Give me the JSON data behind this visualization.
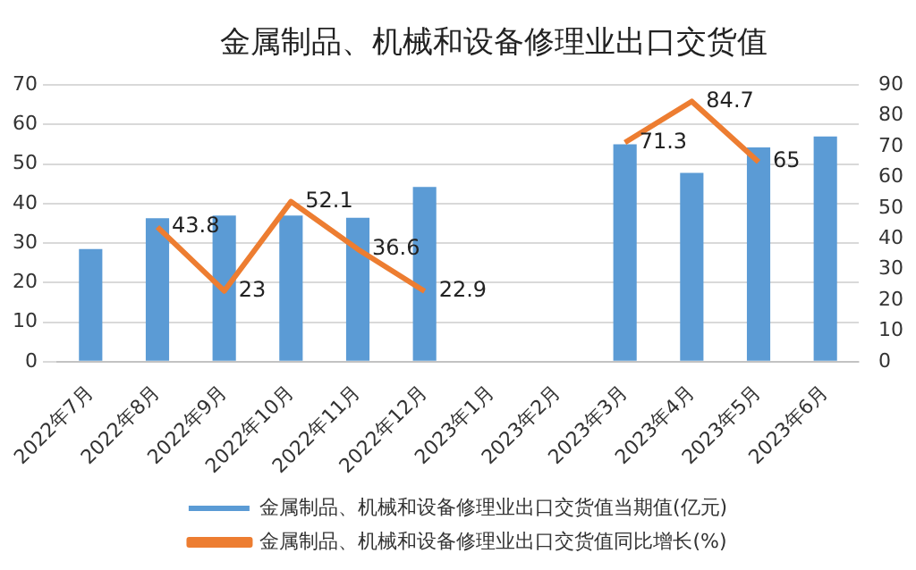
{
  "chart_data": {
    "type": "bar",
    "title": "金属制品、机械和设备修理业出口交货值",
    "categories": [
      "2022年7月",
      "2022年8月",
      "2022年9月",
      "2022年10月",
      "2022年11月",
      "2022年12月",
      "2023年1月",
      "2023年2月",
      "2023年3月",
      "2023年4月",
      "2023年5月",
      "2023年6月"
    ],
    "series": [
      {
        "name": "金属制品、机械和设备修理业出口交货值当期值(亿元)",
        "color": "#5b9bd5",
        "values": [
          28.5,
          36.3,
          37,
          37,
          36.4,
          44.2,
          null,
          null,
          55,
          47.8,
          54.2,
          57
        ]
      },
      {
        "name": "金属制品、机械和设备修理业出口交货值同比增长(%)",
        "type": "line",
        "axis": "y2",
        "color": "#ed7d31",
        "values": [
          null,
          43.8,
          23,
          52.1,
          36.6,
          22.9,
          null,
          null,
          71.3,
          84.7,
          65,
          null
        ],
        "value_labels": [
          null,
          "43.8",
          "23",
          "52.1",
          "36.6",
          "22.9",
          null,
          null,
          "71.3",
          "84.7",
          "65",
          null
        ]
      }
    ],
    "ylim": [
      0,
      70
    ],
    "yticks": [
      0,
      10,
      20,
      30,
      40,
      50,
      60,
      70
    ],
    "y2lim": [
      0,
      90
    ],
    "y2ticks": [
      0,
      10,
      20,
      30,
      40,
      50,
      60,
      70,
      80,
      90
    ],
    "grid": "y",
    "legend": "bottom",
    "marker": "none"
  }
}
